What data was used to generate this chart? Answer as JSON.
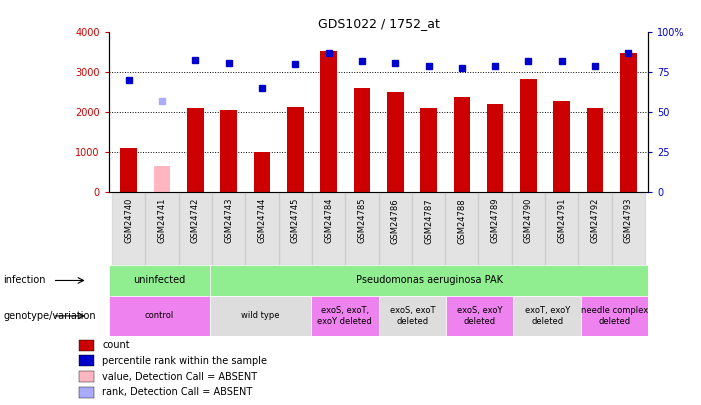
{
  "title": "GDS1022 / 1752_at",
  "samples": [
    "GSM24740",
    "GSM24741",
    "GSM24742",
    "GSM24743",
    "GSM24744",
    "GSM24745",
    "GSM24784",
    "GSM24785",
    "GSM24786",
    "GSM24787",
    "GSM24788",
    "GSM24789",
    "GSM24790",
    "GSM24791",
    "GSM24792",
    "GSM24793"
  ],
  "counts": [
    1100,
    0,
    2100,
    2050,
    1020,
    2130,
    3530,
    2620,
    2500,
    2100,
    2380,
    2200,
    2830,
    2280,
    2100,
    3480
  ],
  "absent_counts": [
    0,
    670,
    0,
    0,
    0,
    0,
    0,
    0,
    0,
    0,
    0,
    0,
    0,
    0,
    0,
    0
  ],
  "ranks": [
    70,
    0,
    83,
    81,
    65,
    80,
    87,
    82,
    81,
    79,
    78,
    79,
    82,
    82,
    79,
    87
  ],
  "absent_ranks": [
    0,
    57,
    0,
    0,
    0,
    0,
    0,
    0,
    0,
    0,
    0,
    0,
    0,
    0,
    0,
    0
  ],
  "absent_flags": [
    false,
    true,
    false,
    false,
    false,
    false,
    false,
    false,
    false,
    false,
    false,
    false,
    false,
    false,
    false,
    false
  ],
  "ylim_left": [
    0,
    4000
  ],
  "ylim_right": [
    0,
    100
  ],
  "bar_color": "#cc0000",
  "absent_bar_color": "#ffb6c1",
  "rank_color": "#0000cc",
  "absent_rank_color": "#aaaaff",
  "infection_row": [
    {
      "label": "uninfected",
      "span": 3,
      "color": "#90ee90"
    },
    {
      "label": "Pseudomonas aeruginosa PAK",
      "span": 13,
      "color": "#90ee90"
    }
  ],
  "genotype_row": [
    {
      "label": "control",
      "span": 3,
      "color": "#ee82ee"
    },
    {
      "label": "wild type",
      "span": 3,
      "color": "#dddddd"
    },
    {
      "label": "exoS, exoT,\nexoY deleted",
      "span": 2,
      "color": "#ee82ee"
    },
    {
      "label": "exoS, exoT\ndeleted",
      "span": 2,
      "color": "#dddddd"
    },
    {
      "label": "exoS, exoY\ndeleted",
      "span": 2,
      "color": "#ee82ee"
    },
    {
      "label": "exoT, exoY\ndeleted",
      "span": 2,
      "color": "#dddddd"
    },
    {
      "label": "needle complex\ndeleted",
      "span": 2,
      "color": "#ee82ee"
    }
  ],
  "yticks_left": [
    0,
    1000,
    2000,
    3000,
    4000
  ],
  "yticks_right": [
    0,
    25,
    50,
    75,
    100
  ],
  "legend_items": [
    {
      "label": "count",
      "color": "#cc0000"
    },
    {
      "label": "percentile rank within the sample",
      "color": "#0000cc"
    },
    {
      "label": "value, Detection Call = ABSENT",
      "color": "#ffb6c1"
    },
    {
      "label": "rank, Detection Call = ABSENT",
      "color": "#aaaaff"
    }
  ],
  "bar_width": 0.5
}
